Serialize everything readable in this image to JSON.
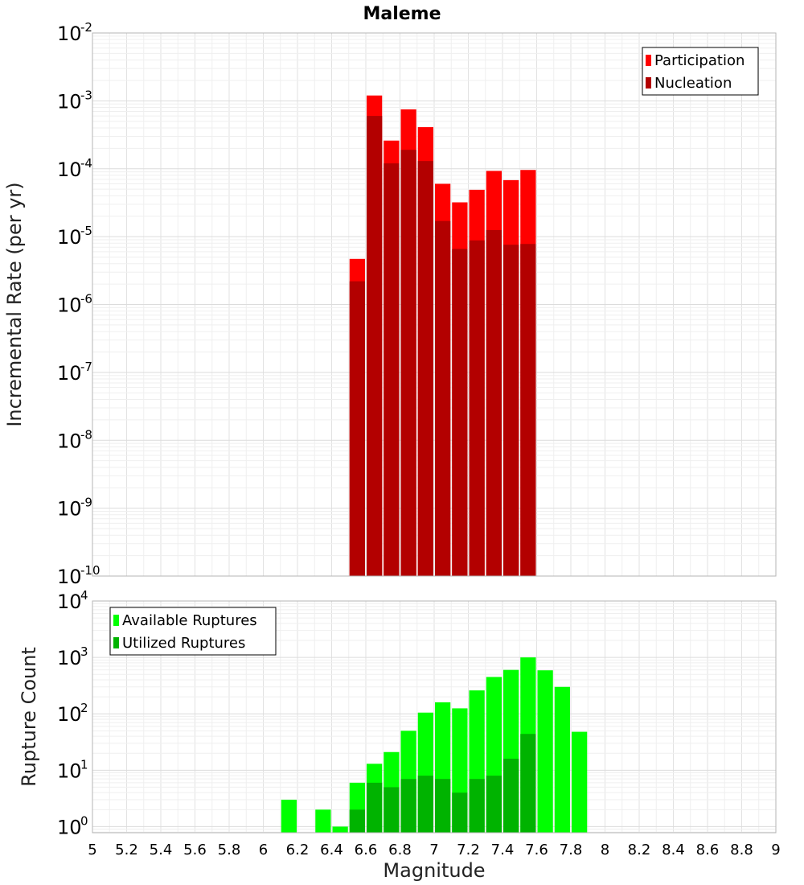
{
  "chart_data": [
    {
      "type": "bar",
      "title": "Maleme",
      "ylabel": "Incremental Rate (per yr)",
      "xlabel": "",
      "xlim": [
        5,
        9
      ],
      "ylim": [
        1e-10,
        0.01
      ],
      "y_scale": "log",
      "y_ticks": [
        {
          "base": "10",
          "exp": "-2",
          "value": 0.01
        },
        {
          "base": "10",
          "exp": "-3",
          "value": 0.001
        },
        {
          "base": "10",
          "exp": "-4",
          "value": 0.0001
        },
        {
          "base": "10",
          "exp": "-5",
          "value": 1e-05
        },
        {
          "base": "10",
          "exp": "-6",
          "value": 1e-06
        },
        {
          "base": "10",
          "exp": "-7",
          "value": 1e-07
        },
        {
          "base": "10",
          "exp": "-8",
          "value": 1e-08
        },
        {
          "base": "10",
          "exp": "-9",
          "value": 1e-09
        },
        {
          "base": "10",
          "exp": "-10",
          "value": 1e-10
        }
      ],
      "grid": true,
      "legend_position": "top-right",
      "x": [
        6.55,
        6.65,
        6.75,
        6.85,
        6.95,
        7.05,
        7.15,
        7.25,
        7.35,
        7.45,
        7.55
      ],
      "series": [
        {
          "name": "Participation",
          "color": "#ff0000",
          "values": [
            4.7e-06,
            0.0012,
            0.00026,
            0.00075,
            0.00041,
            6e-05,
            3.2e-05,
            4.9e-05,
            9.3e-05,
            6.8e-05,
            9.6e-05
          ]
        },
        {
          "name": "Nucleation",
          "color": "#b30000",
          "values": [
            2.2e-06,
            0.0006,
            0.00012,
            0.00019,
            0.00013,
            1.7e-05,
            6.6e-06,
            8.8e-06,
            1.25e-05,
            7.6e-06,
            7.8e-06
          ]
        }
      ]
    },
    {
      "type": "bar",
      "title": "",
      "ylabel": "Rupture Count",
      "xlabel": "Magnitude",
      "xlim": [
        5,
        9
      ],
      "ylim": [
        0.78,
        10000
      ],
      "y_scale": "log",
      "y_ticks": [
        {
          "base": "10",
          "exp": "4",
          "value": 10000
        },
        {
          "base": "10",
          "exp": "3",
          "value": 1000
        },
        {
          "base": "10",
          "exp": "2",
          "value": 100
        },
        {
          "base": "10",
          "exp": "1",
          "value": 10
        },
        {
          "base": "10",
          "exp": "0",
          "value": 1
        }
      ],
      "x_ticks": [
        "5",
        "5.2",
        "5.4",
        "5.6",
        "5.8",
        "6",
        "6.2",
        "6.4",
        "6.6",
        "6.8",
        "7",
        "7.2",
        "7.4",
        "7.6",
        "7.8",
        "8",
        "8.2",
        "8.4",
        "8.6",
        "8.8",
        "9"
      ],
      "grid": true,
      "legend_position": "top-left",
      "x": [
        6.15,
        6.35,
        6.45,
        6.55,
        6.65,
        6.75,
        6.85,
        6.95,
        7.05,
        7.15,
        7.25,
        7.35,
        7.45,
        7.55,
        7.65,
        7.75,
        7.85
      ],
      "series": [
        {
          "name": "Available Ruptures",
          "color": "#00ff00",
          "values": [
            3,
            2,
            1,
            6,
            13,
            21,
            50,
            105,
            160,
            125,
            260,
            450,
            600,
            1000,
            590,
            300,
            48
          ]
        },
        {
          "name": "Utilized Ruptures",
          "color": "#00b300",
          "values": [
            0,
            0,
            0,
            2,
            6,
            5,
            7,
            8,
            7,
            4,
            7,
            8,
            16,
            44,
            0,
            0,
            0
          ]
        }
      ]
    }
  ]
}
